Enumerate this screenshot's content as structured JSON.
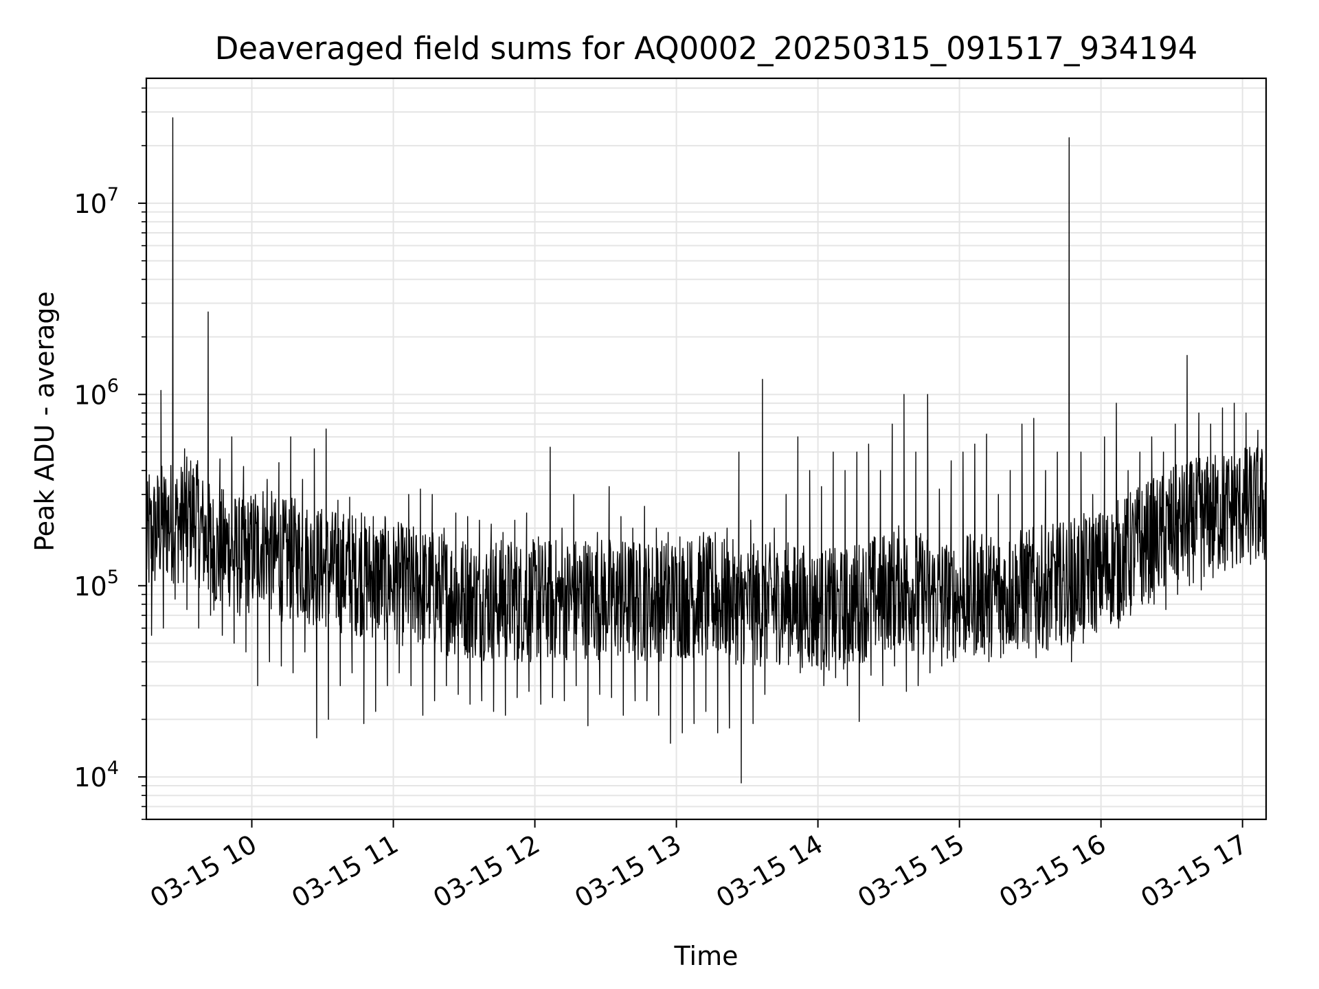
{
  "chart_data": {
    "type": "line",
    "title": "Deaveraged field sums for AQ0002_20250315_091517_934194",
    "xlabel": "Time",
    "ylabel": "Peak ADU - average",
    "yscale": "log",
    "ylim": [
      6000,
      45000000
    ],
    "xlim": [
      "2025-03-15 09:15:17",
      "2025-03-15 17:10:00"
    ],
    "grid": true,
    "line_color": "#000000",
    "grid_color": "#e5e5e5",
    "x_tick_labels": [
      "03-15 10",
      "03-15 11",
      "03-15 12",
      "03-15 13",
      "03-15 14",
      "03-15 15",
      "03-15 16",
      "03-15 17"
    ],
    "y_tick_labels": [
      {
        "base": "10",
        "exp": "4",
        "value": 10000
      },
      {
        "base": "10",
        "exp": "5",
        "value": 100000
      },
      {
        "base": "10",
        "exp": "6",
        "value": 1000000
      },
      {
        "base": "10",
        "exp": "7",
        "value": 10000000
      }
    ],
    "series": [
      {
        "x": [
          "2025-03-15 09:15",
          "2025-03-15 09:20",
          "2025-03-15 09:25",
          "2025-03-15 09:30",
          "2025-03-15 09:35",
          "2025-03-15 09:40",
          "2025-03-15 09:45",
          "2025-03-15 09:50",
          "2025-03-15 09:55",
          "2025-03-15 10:00",
          "2025-03-15 10:05",
          "2025-03-15 10:10",
          "2025-03-15 10:15",
          "2025-03-15 10:20",
          "2025-03-15 10:25",
          "2025-03-15 10:30",
          "2025-03-15 10:35",
          "2025-03-15 10:40",
          "2025-03-15 10:45",
          "2025-03-15 10:50",
          "2025-03-15 10:55",
          "2025-03-15 11:00",
          "2025-03-15 11:05",
          "2025-03-15 11:10",
          "2025-03-15 11:15",
          "2025-03-15 11:20",
          "2025-03-15 11:25",
          "2025-03-15 11:30",
          "2025-03-15 11:35",
          "2025-03-15 11:40",
          "2025-03-15 11:45",
          "2025-03-15 11:50",
          "2025-03-15 11:55",
          "2025-03-15 12:00",
          "2025-03-15 12:05",
          "2025-03-15 12:10",
          "2025-03-15 12:15",
          "2025-03-15 12:20",
          "2025-03-15 12:25",
          "2025-03-15 12:30",
          "2025-03-15 12:35",
          "2025-03-15 12:40",
          "2025-03-15 12:45",
          "2025-03-15 12:50",
          "2025-03-15 12:55",
          "2025-03-15 13:00",
          "2025-03-15 13:05",
          "2025-03-15 13:10",
          "2025-03-15 13:15",
          "2025-03-15 13:20",
          "2025-03-15 13:25",
          "2025-03-15 13:30",
          "2025-03-15 13:35",
          "2025-03-15 13:40",
          "2025-03-15 13:45",
          "2025-03-15 13:50",
          "2025-03-15 13:55",
          "2025-03-15 14:00",
          "2025-03-15 14:05",
          "2025-03-15 14:10",
          "2025-03-15 14:15",
          "2025-03-15 14:20",
          "2025-03-15 14:25",
          "2025-03-15 14:30",
          "2025-03-15 14:35",
          "2025-03-15 14:40",
          "2025-03-15 14:45",
          "2025-03-15 14:50",
          "2025-03-15 14:55",
          "2025-03-15 15:00",
          "2025-03-15 15:05",
          "2025-03-15 15:10",
          "2025-03-15 15:15",
          "2025-03-15 15:20",
          "2025-03-15 15:25",
          "2025-03-15 15:30",
          "2025-03-15 15:35",
          "2025-03-15 15:40",
          "2025-03-15 15:45",
          "2025-03-15 15:50",
          "2025-03-15 15:55",
          "2025-03-15 16:00",
          "2025-03-15 16:05",
          "2025-03-15 16:10",
          "2025-03-15 16:15",
          "2025-03-15 16:20",
          "2025-03-15 16:25",
          "2025-03-15 16:30",
          "2025-03-15 16:35",
          "2025-03-15 16:40",
          "2025-03-15 16:45",
          "2025-03-15 16:50",
          "2025-03-15 16:55",
          "2025-03-15 17:00",
          "2025-03-15 17:05"
        ],
        "y": [
          160000,
          200000,
          220000,
          210000,
          240000,
          180000,
          150000,
          160000,
          140000,
          150000,
          170000,
          140000,
          135000,
          140000,
          130000,
          125000,
          120000,
          118000,
          115000,
          110000,
          108000,
          105000,
          100000,
          98000,
          95000,
          92000,
          90000,
          88000,
          85000,
          86000,
          84000,
          85000,
          82000,
          83000,
          84000,
          85000,
          86000,
          88000,
          87000,
          86000,
          85000,
          84000,
          83000,
          84000,
          85000,
          86000,
          87000,
          88000,
          86000,
          84000,
          82000,
          80000,
          78000,
          80000,
          82000,
          80000,
          78000,
          76000,
          75000,
          74000,
          80000,
          85000,
          90000,
          95000,
          100000,
          95000,
          90000,
          88000,
          86000,
          87000,
          88000,
          89000,
          90000,
          92000,
          94000,
          96000,
          98000,
          100000,
          105000,
          110000,
          115000,
          120000,
          130000,
          140000,
          160000,
          170000,
          180000,
          200000,
          210000,
          220000,
          230000,
          240000,
          250000,
          255000,
          260000
        ],
        "y_peak_max": [
          380000,
          1050000,
          28000000,
          520000,
          430000,
          2700000,
          460000,
          600000,
          420000,
          300000,
          360000,
          440000,
          600000,
          360000,
          520000,
          660000,
          280000,
          290000,
          240000,
          230000,
          230000,
          160000,
          300000,
          320000,
          300000,
          200000,
          240000,
          230000,
          220000,
          210000,
          190000,
          220000,
          240000,
          180000,
          530000,
          200000,
          300000,
          170000,
          190000,
          330000,
          230000,
          200000,
          260000,
          200000,
          190000,
          180000,
          170000,
          190000,
          190000,
          200000,
          500000,
          220000,
          1200000,
          200000,
          300000,
          600000,
          400000,
          330000,
          500000,
          400000,
          500000,
          550000,
          400000,
          700000,
          1000000,
          500000,
          1000000,
          320000,
          450000,
          500000,
          550000,
          620000,
          300000,
          400000,
          700000,
          750000,
          400000,
          500000,
          22000000,
          500000,
          300000,
          600000,
          900000,
          400000,
          500000,
          600000,
          500000,
          700000,
          1600000,
          800000,
          700000,
          850000,
          900000,
          800000,
          650000
        ],
        "y_dip_min": [
          55000,
          60000,
          85000,
          75000,
          60000,
          70000,
          55000,
          50000,
          45000,
          30000,
          40000,
          38000,
          35000,
          45000,
          16000,
          20000,
          30000,
          35000,
          19000,
          22000,
          30000,
          35000,
          30000,
          21000,
          25000,
          30000,
          27000,
          24000,
          25000,
          22000,
          21000,
          26000,
          28000,
          24000,
          26000,
          25000,
          30000,
          18500,
          27000,
          26000,
          21000,
          25000,
          25000,
          21000,
          15000,
          17000,
          19000,
          22000,
          17000,
          18000,
          9300,
          19000,
          27000,
          40000,
          42000,
          35000,
          38000,
          30000,
          33000,
          30000,
          19500,
          34000,
          30000,
          38000,
          28000,
          30000,
          35000,
          38000,
          40000,
          45000,
          50000,
          40000,
          42000,
          55000,
          60000,
          42000,
          46000,
          55000,
          40000,
          50000,
          65000,
          75000,
          60000,
          70000,
          80000,
          80000,
          75000,
          90000,
          100000,
          95000,
          110000,
          120000,
          130000,
          150000,
          170000
        ]
      }
    ]
  }
}
